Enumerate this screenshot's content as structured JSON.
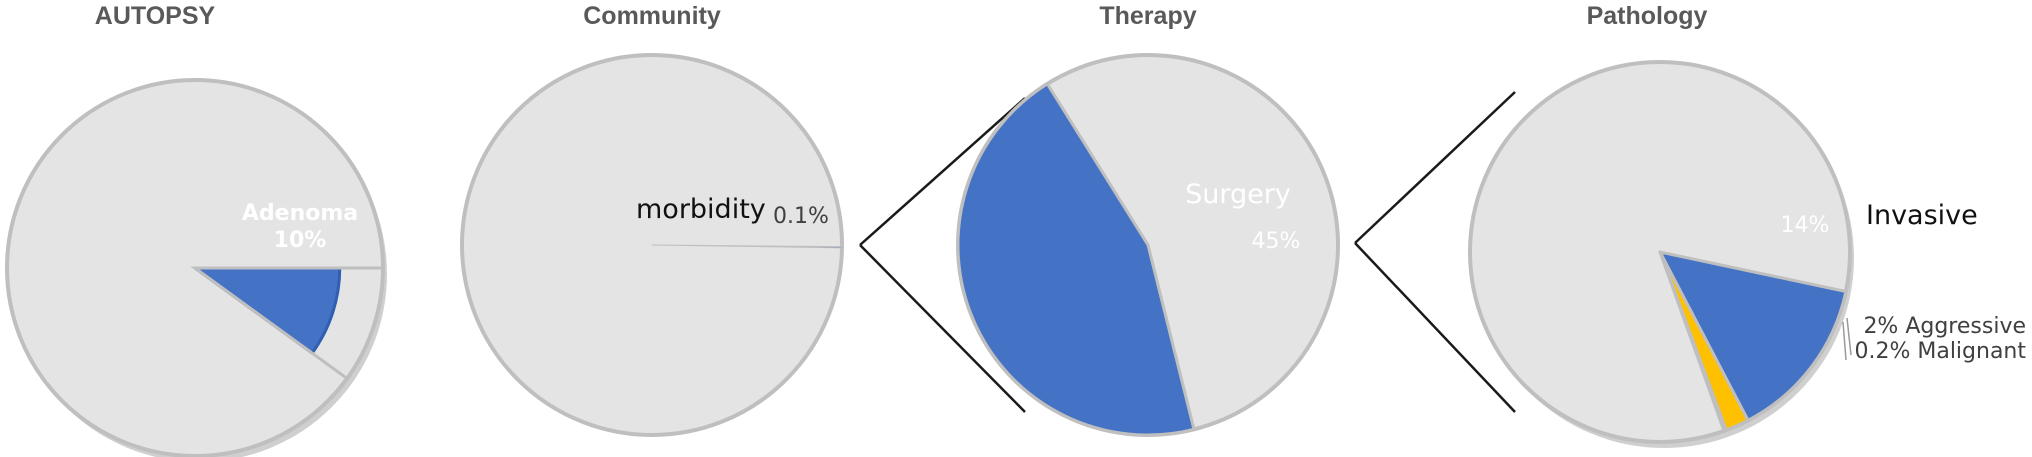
{
  "colors": {
    "background_slice": "#e4e4e4",
    "slice_border": "#bfbfbf",
    "blue": "#4472c4",
    "blue_dark": "#2f5fb3",
    "yellow": "#ffc000",
    "red": "#e8472d",
    "connector": "#1a1a1a",
    "title": "#595959"
  },
  "chart_data": [
    {
      "type": "pie",
      "title": "AUTOPSY",
      "slices": [
        {
          "label": "Adenoma",
          "value": 10,
          "value_label": "10%",
          "highlight": true
        },
        {
          "label": "",
          "value": 90,
          "value_label": ""
        }
      ]
    },
    {
      "type": "pie",
      "title": "Community",
      "slices": [
        {
          "label": "morbidity",
          "value": 0.1,
          "value_label": "0.1%",
          "highlight": true
        },
        {
          "label": "",
          "value": 99.9,
          "value_label": ""
        }
      ]
    },
    {
      "type": "pie",
      "title": "Therapy",
      "slices": [
        {
          "label": "Surgery",
          "value": 45,
          "value_label": "45%",
          "highlight": true
        },
        {
          "label": "",
          "value": 55,
          "value_label": ""
        }
      ]
    },
    {
      "type": "pie",
      "title": "Pathology",
      "slices": [
        {
          "label": "Invasive",
          "value": 14,
          "value_label": "14%",
          "highlight": true
        },
        {
          "label": "Aggressive",
          "value": 2,
          "value_label": "2% Aggressive"
        },
        {
          "label": "Malignant",
          "value": 0.2,
          "value_label": "0.2% Malignant"
        },
        {
          "label": "",
          "value": 83.8,
          "value_label": ""
        }
      ]
    }
  ]
}
